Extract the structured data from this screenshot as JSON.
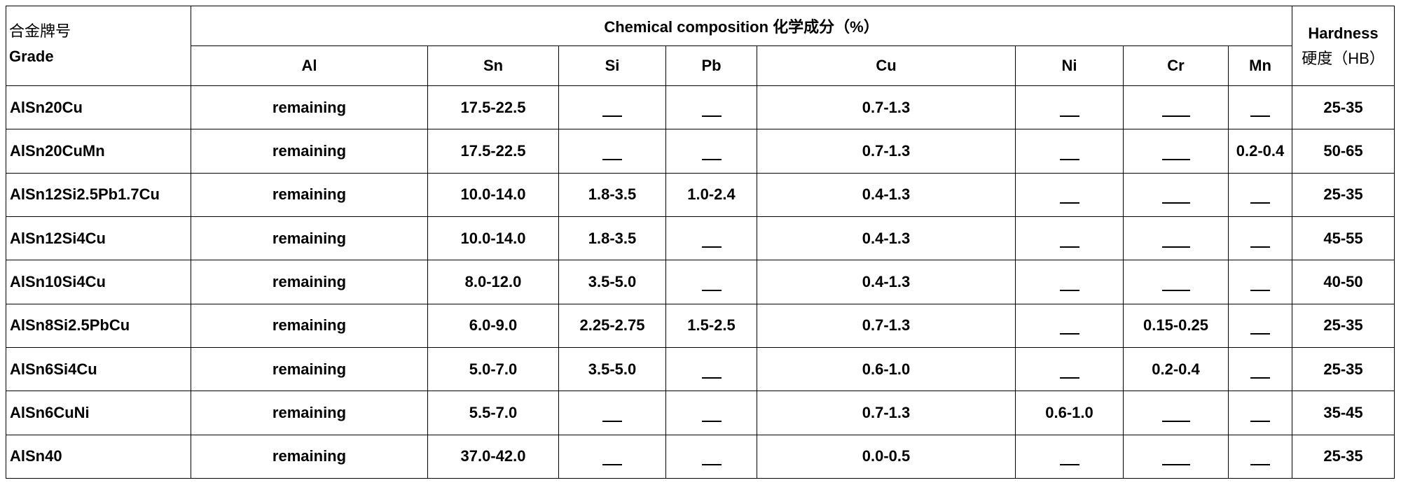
{
  "header": {
    "grade_zh": "合金牌号",
    "grade_en": "Grade",
    "composition_title": "Chemical composition 化学成分（%）",
    "hardness_en": "Hardness",
    "hardness_zh": "硬度（HB）",
    "elements": [
      "Al",
      "Sn",
      "Si",
      "Pb",
      "Cu",
      "Ni",
      "Cr",
      "Mn"
    ]
  },
  "rows": [
    {
      "grade": "AlSn20Cu",
      "al": "remaining",
      "sn": "17.5-22.5",
      "si": "",
      "pb": "",
      "cu": "0.7-1.3",
      "ni": "",
      "cr": "",
      "mn": "",
      "hb": "25-35"
    },
    {
      "grade": "AlSn20CuMn",
      "al": "remaining",
      "sn": "17.5-22.5",
      "si": "",
      "pb": "",
      "cu": "0.7-1.3",
      "ni": "",
      "cr": "",
      "mn": "0.2-0.4",
      "hb": "50-65"
    },
    {
      "grade": "AlSn12Si2.5Pb1.7Cu",
      "al": "remaining",
      "sn": "10.0-14.0",
      "si": "1.8-3.5",
      "pb": "1.0-2.4",
      "cu": "0.4-1.3",
      "ni": "",
      "cr": "",
      "mn": "",
      "hb": "25-35"
    },
    {
      "grade": "AlSn12Si4Cu",
      "al": "remaining",
      "sn": "10.0-14.0",
      "si": "1.8-3.5",
      "pb": "",
      "cu": "0.4-1.3",
      "ni": "",
      "cr": "",
      "mn": "",
      "hb": "45-55"
    },
    {
      "grade": "AlSn10Si4Cu",
      "al": "remaining",
      "sn": "8.0-12.0",
      "si": "3.5-5.0",
      "pb": "",
      "cu": "0.4-1.3",
      "ni": "",
      "cr": "",
      "mn": "",
      "hb": "40-50"
    },
    {
      "grade": "AlSn8Si2.5PbCu",
      "al": "remaining",
      "sn": "6.0-9.0",
      "si": "2.25-2.75",
      "pb": "1.5-2.5",
      "cu": "0.7-1.3",
      "ni": "",
      "cr": "0.15-0.25",
      "mn": "",
      "hb": "25-35"
    },
    {
      "grade": "AlSn6Si4Cu",
      "al": "remaining",
      "sn": "5.0-7.0",
      "si": "3.5-5.0",
      "pb": "",
      "cu": "0.6-1.0",
      "ni": "",
      "cr": "0.2-0.4",
      "mn": "",
      "hb": "25-35"
    },
    {
      "grade": "AlSn6CuNi",
      "al": "remaining",
      "sn": "5.5-7.0",
      "si": "",
      "pb": "",
      "cu": "0.7-1.3",
      "ni": "0.6-1.0",
      "cr": "",
      "mn": "",
      "hb": "35-45"
    },
    {
      "grade": "AlSn40",
      "al": "remaining",
      "sn": "37.0-42.0",
      "si": "",
      "pb": "",
      "cu": "0.0-0.5",
      "ni": "",
      "cr": "",
      "mn": "",
      "hb": "25-35"
    }
  ]
}
